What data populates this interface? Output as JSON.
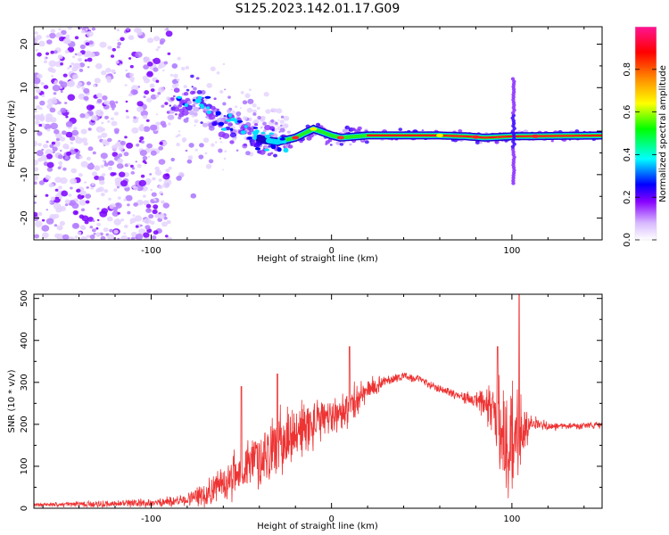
{
  "title": "S125.2023.142.01.17.G09",
  "chart_data": [
    {
      "type": "heatmap",
      "xlabel": "Height of straight line (km)",
      "ylabel": "Frequency (Hz)",
      "xlim": [
        -165,
        150
      ],
      "ylim": [
        -25,
        24
      ],
      "xticks": [
        -100,
        0,
        100
      ],
      "yticks": [
        -20,
        -10,
        0,
        10,
        20
      ],
      "colorbar": {
        "label": "Normalized spectral amplitude",
        "range": [
          0,
          1
        ],
        "ticks": [
          0.0,
          0.2,
          0.4,
          0.6,
          0.8
        ],
        "colors": [
          "#ffffff",
          "#d7b8ff",
          "#8800ff",
          "#0000ff",
          "#00ffff",
          "#00ff00",
          "#ffff00",
          "#ff8800",
          "#ff0000",
          "#ff1493"
        ]
      },
      "features": {
        "noise_region_x": [
          -165,
          -90
        ],
        "transition_region_x": [
          -90,
          -25
        ],
        "dominant_frequency_track": [
          [
            -90,
            5
          ],
          [
            -75,
            8
          ],
          [
            -65,
            3
          ],
          [
            -55,
            1
          ],
          [
            -45,
            -1
          ],
          [
            -38,
            -2
          ],
          [
            -30,
            -2.5
          ],
          [
            -20,
            -1.5
          ],
          [
            -10,
            0.5
          ],
          [
            0,
            -1
          ],
          [
            5,
            -1.5
          ],
          [
            20,
            -1
          ],
          [
            60,
            -1
          ],
          [
            75,
            -1.2
          ],
          [
            85,
            -1.5
          ],
          [
            100,
            -1.2
          ],
          [
            150,
            -1
          ]
        ],
        "vertical_spike_x": 101,
        "vertical_spike_range": [
          -12,
          12
        ]
      }
    },
    {
      "type": "line",
      "color": "#ee3333",
      "xlabel": "Height of straight line (km)",
      "ylabel": "SNR (10 * v/v)",
      "xlim": [
        -165,
        150
      ],
      "ylim": [
        0,
        510
      ],
      "xticks": [
        -100,
        0,
        100
      ],
      "yticks": [
        0,
        100,
        200,
        300,
        400,
        500
      ],
      "envelope": {
        "x": [
          -165,
          -130,
          -100,
          -80,
          -70,
          -60,
          -50,
          -40,
          -30,
          -20,
          -10,
          0,
          10,
          20,
          30,
          40,
          50,
          60,
          70,
          80,
          90,
          95,
          100,
          105,
          110,
          120,
          130,
          140,
          150
        ],
        "mean": [
          8,
          10,
          12,
          20,
          35,
          60,
          90,
          120,
          150,
          180,
          200,
          220,
          240,
          280,
          305,
          315,
          305,
          285,
          270,
          255,
          230,
          180,
          150,
          160,
          205,
          195,
          195,
          195,
          200
        ],
        "spread": [
          4,
          8,
          10,
          15,
          30,
          45,
          60,
          70,
          80,
          75,
          60,
          40,
          50,
          30,
          12,
          10,
          10,
          10,
          12,
          18,
          80,
          150,
          160,
          120,
          20,
          10,
          8,
          8,
          8
        ]
      },
      "peaks": [
        [
          10,
          385
        ],
        [
          92,
          385
        ],
        [
          104,
          510
        ],
        [
          -50,
          290
        ],
        [
          -30,
          320
        ]
      ]
    }
  ]
}
